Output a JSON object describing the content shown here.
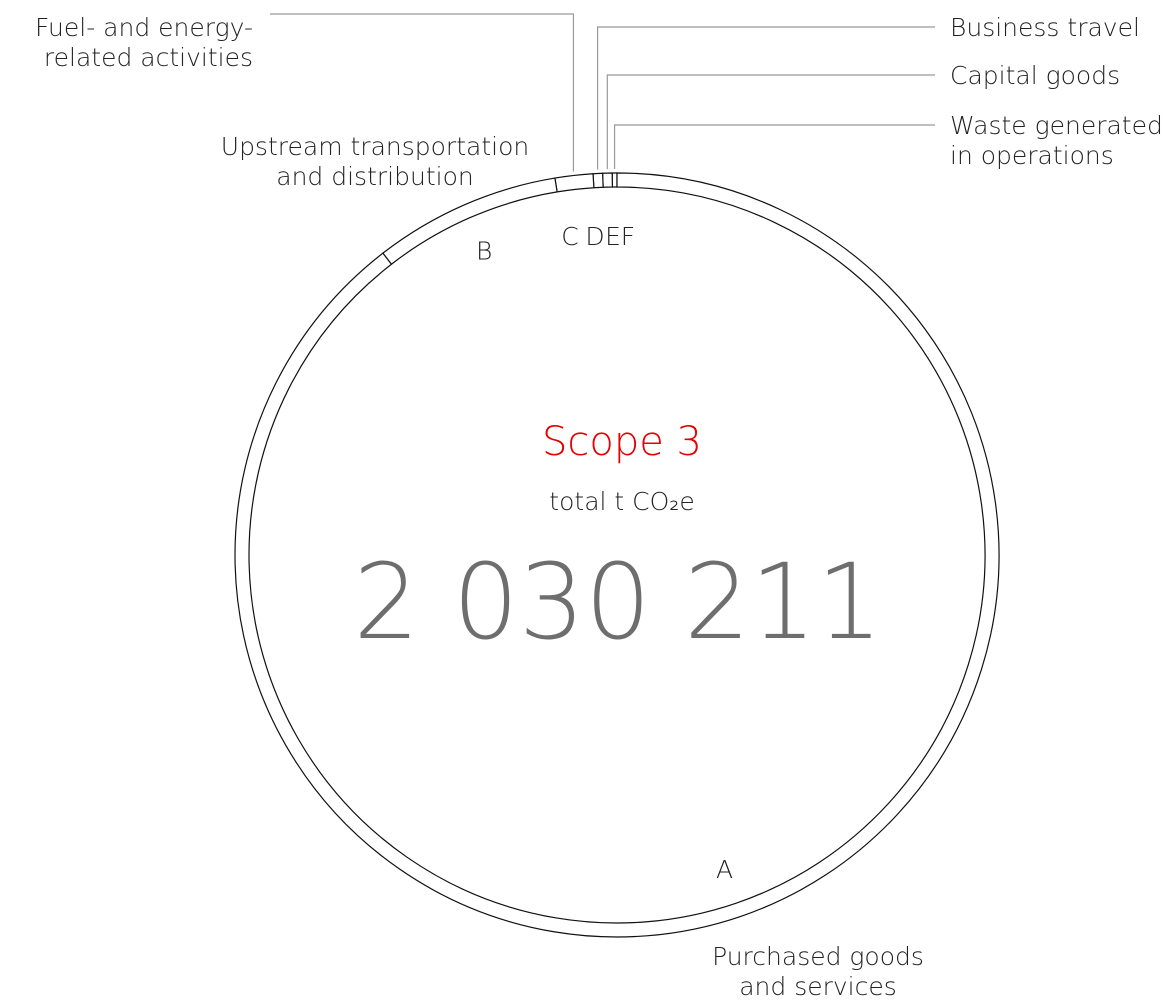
{
  "chart_data": {
    "type": "donut",
    "title": "Scope 3",
    "subtitle": "total t CO₂e",
    "total": "2 030 211",
    "series": [
      {
        "letter": "A",
        "name": [
          "Purchased goods",
          "and services"
        ],
        "value": 89.5
      },
      {
        "letter": "B",
        "name": [
          "Upstream transportation",
          "and distribution"
        ],
        "value": 7.9
      },
      {
        "letter": "C",
        "name": [
          "Fuel- and energy-",
          "related activities"
        ],
        "value": 1.6
      },
      {
        "letter": "D",
        "name": [
          "Business travel"
        ],
        "value": 0.4
      },
      {
        "letter": "E",
        "name": [
          "Capital goods"
        ],
        "value": 0.4
      },
      {
        "letter": "F",
        "name": [
          "Waste generated",
          "in operations"
        ],
        "value": 0.2
      }
    ]
  }
}
